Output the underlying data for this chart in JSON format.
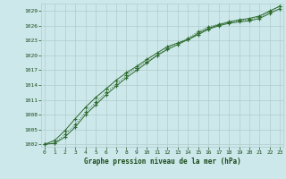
{
  "title": "Graphe pression niveau de la mer (hPa)",
  "x": [
    0,
    1,
    2,
    3,
    4,
    5,
    6,
    7,
    8,
    9,
    10,
    11,
    12,
    13,
    14,
    15,
    16,
    17,
    18,
    19,
    20,
    21,
    22,
    23
  ],
  "line1": [
    1002.0,
    1002.8,
    1004.8,
    1007.2,
    1009.5,
    1011.5,
    1013.2,
    1015.0,
    1016.5,
    1017.8,
    1019.2,
    1020.5,
    1021.8,
    1022.5,
    1023.2,
    1024.2,
    1025.3,
    1026.0,
    1026.5,
    1026.8,
    1027.0,
    1027.5,
    1028.5,
    1029.5
  ],
  "line2": [
    1002.0,
    1002.3,
    1004.0,
    1006.0,
    1008.5,
    1010.5,
    1012.5,
    1014.2,
    1016.0,
    1017.5,
    1018.8,
    1020.0,
    1021.5,
    1022.5,
    1023.5,
    1024.8,
    1025.8,
    1026.3,
    1026.7,
    1027.0,
    1027.3,
    1027.8,
    1028.8,
    1030.0
  ],
  "line3": [
    1002.0,
    1002.2,
    1003.5,
    1005.5,
    1008.0,
    1010.0,
    1012.0,
    1013.8,
    1015.5,
    1017.0,
    1018.5,
    1020.0,
    1021.2,
    1022.2,
    1023.2,
    1024.5,
    1025.5,
    1026.2,
    1026.8,
    1027.2,
    1027.5,
    1028.0,
    1029.0,
    1030.0
  ],
  "line_color": "#2d6a2d",
  "bg_color": "#cce8ea",
  "grid_color": "#b0cccc",
  "text_color": "#1a4a1a",
  "ylim": [
    1001.5,
    1030.5
  ],
  "yticks": [
    1002,
    1005,
    1008,
    1011,
    1014,
    1017,
    1020,
    1023,
    1026,
    1029
  ],
  "xlim": [
    -0.3,
    23.3
  ],
  "xticks": [
    0,
    1,
    2,
    3,
    4,
    5,
    6,
    7,
    8,
    9,
    10,
    11,
    12,
    13,
    14,
    15,
    16,
    17,
    18,
    19,
    20,
    21,
    22,
    23
  ]
}
